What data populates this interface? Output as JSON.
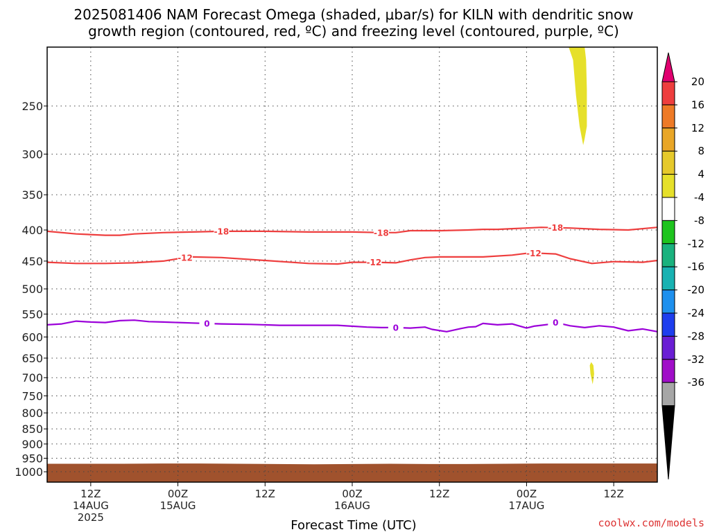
{
  "title": {
    "line1": "2025081406 NAM Forecast Omega (shaded, μbar/s) for KILN with dendritic snow",
    "line2": "growth region (contoured, red, ºC) and freezing level (contoured, purple, ºC)"
  },
  "credit": "coolwx.com/models",
  "chart_data": {
    "type": "contour",
    "xlabel": "Forecast Time (UTC)",
    "x_ticks": [
      {
        "hour": 6,
        "lines": [
          "12Z",
          "14AUG",
          "2025"
        ]
      },
      {
        "hour": 18,
        "lines": [
          "00Z",
          "15AUG"
        ]
      },
      {
        "hour": 30,
        "lines": [
          "12Z"
        ]
      },
      {
        "hour": 42,
        "lines": [
          "00Z",
          "16AUG"
        ]
      },
      {
        "hour": 54,
        "lines": [
          "12Z"
        ]
      },
      {
        "hour": 66,
        "lines": [
          "00Z",
          "17AUG"
        ]
      },
      {
        "hour": 78,
        "lines": [
          "12Z"
        ]
      }
    ],
    "xlim": [
      0,
      84
    ],
    "ylabel": "",
    "y_axis": "pressure (hPa), log scale, inverted",
    "ylim": [
      1040,
      200
    ],
    "y_ticks": [
      250,
      300,
      350,
      400,
      450,
      500,
      550,
      600,
      650,
      700,
      750,
      800,
      850,
      900,
      950,
      1000
    ],
    "grid": true,
    "surface": {
      "color": "#a0522d",
      "pressure_top": [
        970,
        970,
        970,
        969,
        969,
        970,
        971,
        972,
        971,
        970,
        971,
        971,
        970,
        969,
        969,
        969,
        969
      ]
    },
    "series": [
      {
        "name": "-18",
        "color": "#ee3e3e",
        "label_hours": [
          24,
          46,
          70
        ],
        "hours": [
          0,
          4,
          8,
          10,
          12,
          16,
          20,
          24,
          30,
          36,
          42,
          46,
          48,
          50,
          54,
          58,
          60,
          62,
          64,
          66,
          68,
          72,
          76,
          80,
          84
        ],
        "pressure": [
          402,
          406,
          408,
          408,
          406,
          404,
          403,
          402,
          402,
          403,
          403,
          404,
          404,
          401,
          401,
          400,
          399,
          399,
          398,
          397,
          396,
          397,
          399,
          400,
          396
        ]
      },
      {
        "name": "-12",
        "color": "#ee3e3e",
        "label_hours": [
          19,
          45,
          67
        ],
        "hours": [
          0,
          4,
          8,
          12,
          16,
          18,
          20,
          24,
          30,
          36,
          40,
          42,
          45,
          48,
          50,
          52,
          54,
          56,
          60,
          64,
          66,
          68,
          70,
          72,
          75,
          78,
          82,
          84
        ],
        "pressure": [
          452,
          454,
          454,
          453,
          450,
          446,
          443,
          444,
          449,
          454,
          455,
          452,
          452,
          453,
          448,
          444,
          443,
          443,
          443,
          440,
          437,
          437,
          438,
          446,
          454,
          451,
          452,
          449
        ]
      },
      {
        "name": "0",
        "color": "#9b00d9",
        "label_hours": [
          22,
          48,
          70
        ],
        "hours": [
          0,
          2,
          4,
          6,
          8,
          10,
          12,
          14,
          16,
          20,
          24,
          28,
          32,
          36,
          40,
          44,
          46,
          48,
          50,
          52,
          53,
          55,
          57,
          58,
          59,
          60,
          62,
          64,
          66,
          67,
          68,
          69,
          70,
          72,
          74,
          76,
          78,
          80,
          82,
          84
        ],
        "pressure": [
          573,
          571,
          565,
          567,
          568,
          564,
          563,
          566,
          567,
          569,
          571,
          572,
          574,
          574,
          574,
          578,
          579,
          579,
          580,
          578,
          583,
          588,
          581,
          578,
          577,
          570,
          573,
          571,
          580,
          576,
          574,
          572,
          568,
          575,
          579,
          575,
          578,
          586,
          582,
          588
        ]
      }
    ],
    "shaded_regions": [
      {
        "name": "omega 4-8 μbar/s",
        "color": "#e6e02a",
        "points": [
          [
            71.8,
            200
          ],
          [
            74.0,
            200
          ],
          [
            74.2,
            210
          ],
          [
            74.3,
            235
          ],
          [
            74.3,
            270
          ],
          [
            74.0,
            283
          ],
          [
            73.8,
            290
          ],
          [
            73.3,
            270
          ],
          [
            72.8,
            240
          ],
          [
            72.4,
            210
          ]
        ]
      },
      {
        "name": "omega 4-8 μbar/s (small)",
        "color": "#e6e02a",
        "points": [
          [
            74.9,
            660
          ],
          [
            75.2,
            668
          ],
          [
            75.3,
            690
          ],
          [
            75.1,
            718
          ],
          [
            74.8,
            690
          ],
          [
            74.7,
            668
          ]
        ]
      }
    ],
    "colorbar": {
      "arrow_top": "#e0006f",
      "arrow_bottom": "#000000",
      "labels": [
        "20",
        "16",
        "12",
        "8",
        "4",
        "-4",
        "-8",
        "-12",
        "-16",
        "-20",
        "-24",
        "-28",
        "-32",
        "-36"
      ],
      "colors": [
        "#ee3e3e",
        "#ee7a26",
        "#e9a627",
        "#e6c92b",
        "#e6e02a",
        "#ffffff",
        "#1ec41e",
        "#1ab27e",
        "#18b2b2",
        "#1e90ee",
        "#1e3eee",
        "#6a1ed4",
        "#a00ec8",
        "#a6a6a6"
      ]
    }
  }
}
